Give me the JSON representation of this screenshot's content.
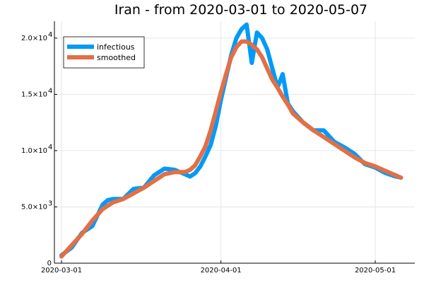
{
  "chart_data": {
    "type": "line",
    "title": "Iran - from 2020-03-01 to 2020-05-07",
    "xlabel": "",
    "ylabel": "",
    "x_start": "2020-03-01",
    "x_end": "2020-05-07",
    "ylim": [
      0,
      21500
    ],
    "grid": true,
    "legend_position": "top-left",
    "x_ticks": [
      {
        "date": "2020-03-01",
        "label": "2020-03-01"
      },
      {
        "date": "2020-04-01",
        "label": "2020-04-01"
      },
      {
        "date": "2020-05-01",
        "label": "2020-05-01"
      }
    ],
    "y_ticks": [
      {
        "value": 0,
        "mantissa": "0",
        "exp": ""
      },
      {
        "value": 5000,
        "mantissa": "5.0×10",
        "exp": "3"
      },
      {
        "value": 10000,
        "mantissa": "1.0×10",
        "exp": "4"
      },
      {
        "value": 15000,
        "mantissa": "1.5×10",
        "exp": "4"
      },
      {
        "value": 20000,
        "mantissa": "2.0×10",
        "exp": "4"
      }
    ],
    "series": [
      {
        "name": "infectious",
        "color": "#009af9",
        "x": [
          "2020-03-01",
          "2020-03-03",
          "2020-03-05",
          "2020-03-07",
          "2020-03-09",
          "2020-03-10",
          "2020-03-11",
          "2020-03-13",
          "2020-03-15",
          "2020-03-17",
          "2020-03-19",
          "2020-03-21",
          "2020-03-23",
          "2020-03-25",
          "2020-03-26",
          "2020-03-27",
          "2020-03-28",
          "2020-03-29",
          "2020-03-30",
          "2020-03-31",
          "2020-04-01",
          "2020-04-02",
          "2020-04-03",
          "2020-04-04",
          "2020-04-05",
          "2020-04-06",
          "2020-04-07",
          "2020-04-08",
          "2020-04-09",
          "2020-04-10",
          "2020-04-11",
          "2020-04-12",
          "2020-04-13",
          "2020-04-14",
          "2020-04-15",
          "2020-04-17",
          "2020-04-19",
          "2020-04-21",
          "2020-04-23",
          "2020-04-25",
          "2020-04-27",
          "2020-04-29",
          "2020-05-01",
          "2020-05-03",
          "2020-05-05",
          "2020-05-06"
        ],
        "values": [
          700,
          1400,
          2700,
          3300,
          5200,
          5600,
          5700,
          5700,
          6600,
          6700,
          7800,
          8400,
          8300,
          7900,
          7700,
          8000,
          8600,
          9500,
          10500,
          12200,
          14500,
          16500,
          18500,
          20000,
          20800,
          21200,
          17800,
          20500,
          20000,
          19000,
          17300,
          15600,
          16800,
          14200,
          13500,
          12500,
          11800,
          11800,
          10800,
          10300,
          9700,
          8800,
          8500,
          8000,
          7700,
          7600
        ]
      },
      {
        "name": "smoothed",
        "color": "#e26f46",
        "x": [
          "2020-03-01",
          "2020-03-03",
          "2020-03-05",
          "2020-03-07",
          "2020-03-09",
          "2020-03-11",
          "2020-03-13",
          "2020-03-15",
          "2020-03-17",
          "2020-03-19",
          "2020-03-21",
          "2020-03-23",
          "2020-03-25",
          "2020-03-26",
          "2020-03-27",
          "2020-03-28",
          "2020-03-29",
          "2020-03-30",
          "2020-03-31",
          "2020-04-01",
          "2020-04-02",
          "2020-04-03",
          "2020-04-04",
          "2020-04-05",
          "2020-04-06",
          "2020-04-07",
          "2020-04-08",
          "2020-04-09",
          "2020-04-10",
          "2020-04-11",
          "2020-04-12",
          "2020-04-13",
          "2020-04-14",
          "2020-04-15",
          "2020-04-17",
          "2020-04-19",
          "2020-04-21",
          "2020-04-23",
          "2020-04-25",
          "2020-04-27",
          "2020-04-29",
          "2020-05-01",
          "2020-05-03",
          "2020-05-05",
          "2020-05-06"
        ],
        "values": [
          600,
          1600,
          2600,
          3800,
          4800,
          5400,
          5700,
          6200,
          6700,
          7300,
          7900,
          8100,
          8100,
          8300,
          8700,
          9500,
          10400,
          11800,
          13500,
          15200,
          16800,
          18300,
          19200,
          19700,
          19700,
          19400,
          19000,
          18300,
          17300,
          16300,
          15600,
          14800,
          14100,
          13300,
          12500,
          11800,
          11200,
          10600,
          10000,
          9400,
          8900,
          8600,
          8200,
          7800,
          7600
        ]
      }
    ]
  }
}
